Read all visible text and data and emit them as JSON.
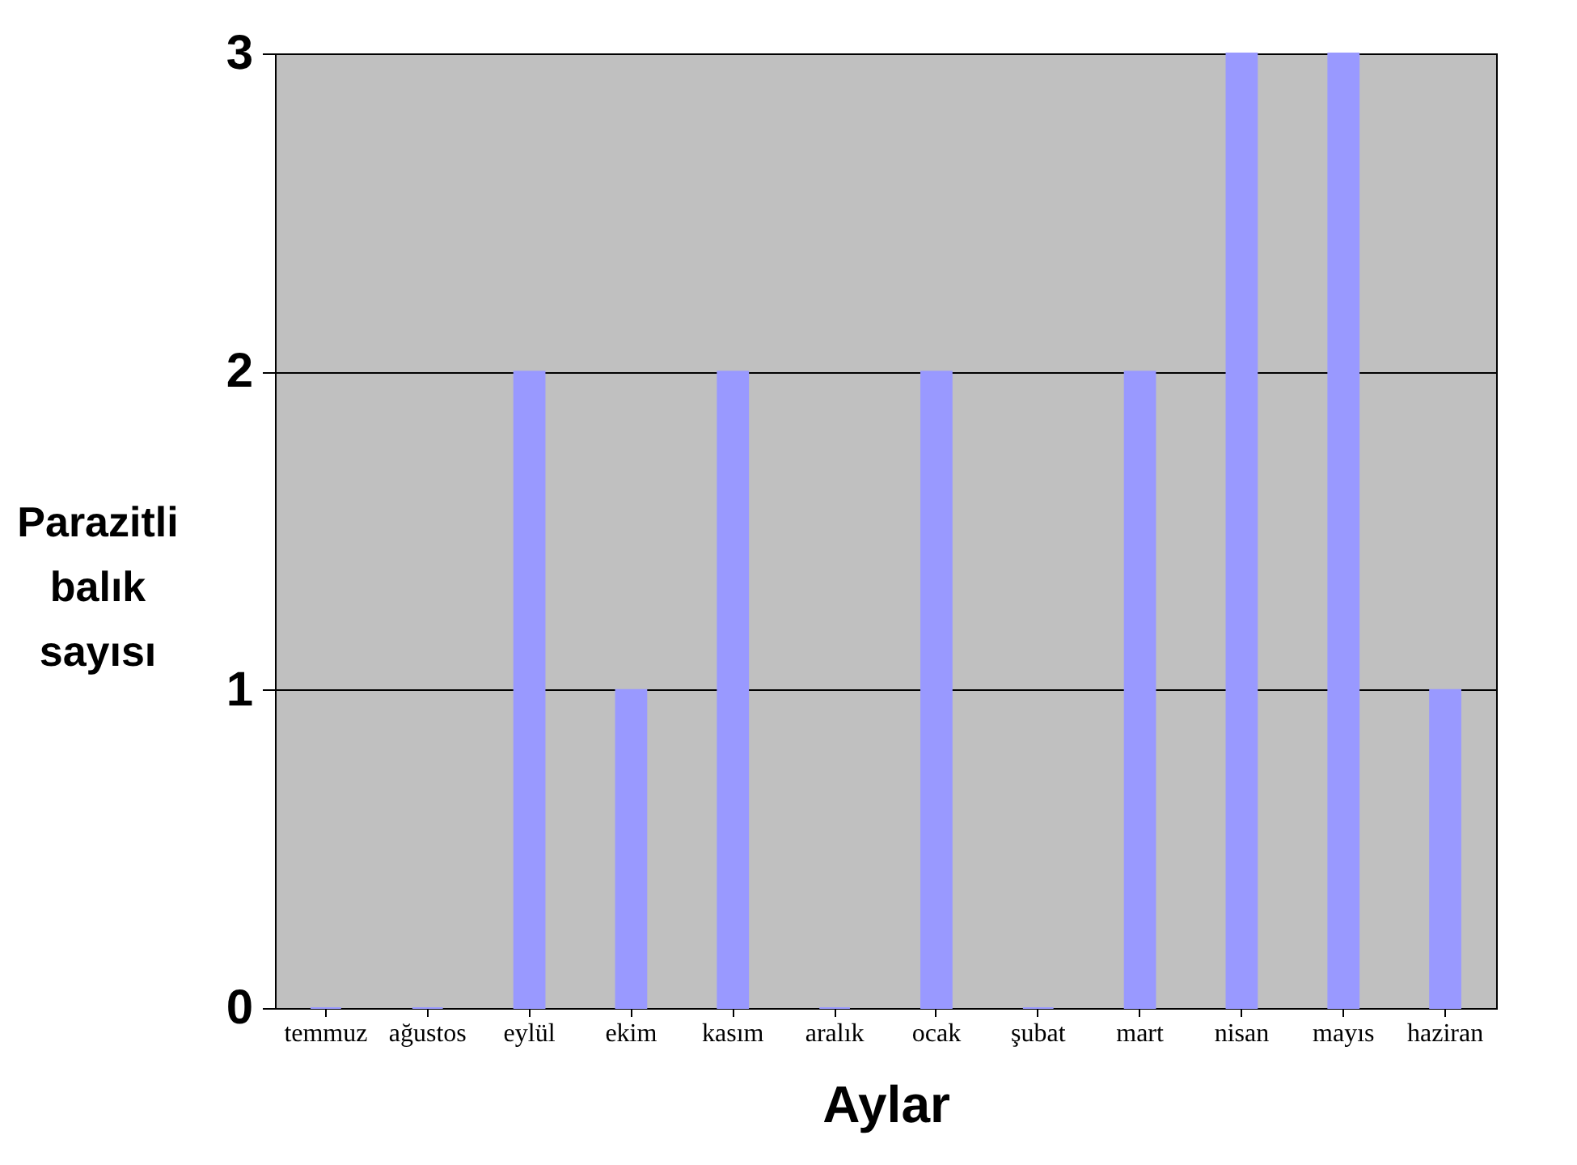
{
  "chart_data": {
    "type": "bar",
    "xlabel": "Aylar",
    "ylabel": "Parazitli balık sayısı",
    "categories": [
      "temmuz",
      "ağustos",
      "eylül",
      "ekim",
      "kasım",
      "aralık",
      "ocak",
      "şubat",
      "mart",
      "nisan",
      "mayıs",
      "haziran"
    ],
    "values": [
      0,
      0,
      2,
      1,
      2,
      0,
      2,
      0,
      2,
      3,
      3,
      1
    ],
    "color": "#9999ff",
    "ylim": [
      0,
      3
    ],
    "yticks": [
      0,
      1,
      2,
      3
    ],
    "grid": "y"
  }
}
